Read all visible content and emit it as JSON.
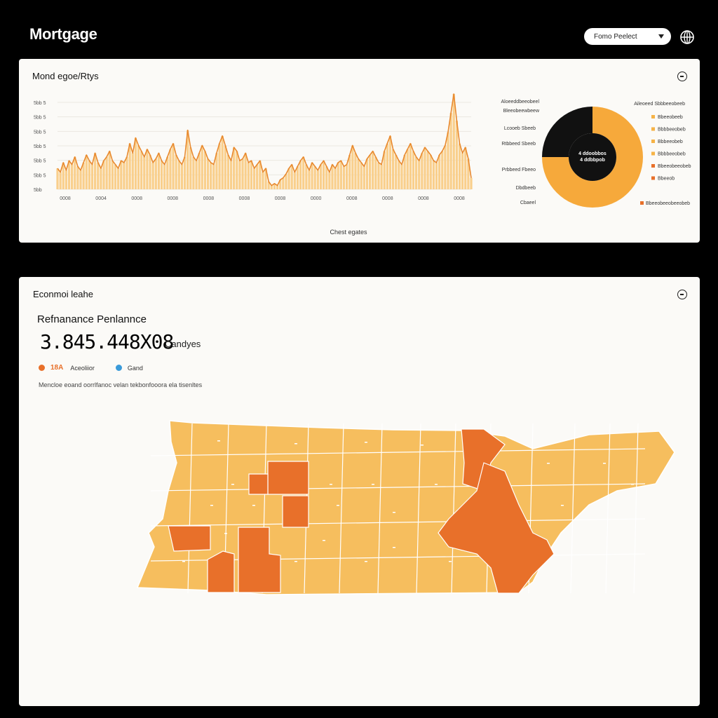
{
  "app": {
    "title": "Mortgage"
  },
  "header": {
    "range_value": "Fomo Peelect"
  },
  "trend_panel": {
    "title": "Mond egoe/Rtys",
    "caption": "Chest egates"
  },
  "chart_data": [
    {
      "type": "area",
      "title": "",
      "y_ticks": [
        "5bb 5",
        "5bb 5",
        "5bb 5",
        "5bb 5",
        "5bb 5",
        "5bb 5",
        "5bb"
      ],
      "x_ticks": [
        "0008",
        "0004",
        "0008",
        "0008",
        "0008",
        "0008",
        "0008",
        "0000",
        "0008",
        "0008",
        "0008",
        "0008"
      ],
      "ylim": [
        0,
        100
      ],
      "values": [
        22,
        18,
        28,
        20,
        30,
        26,
        34,
        24,
        20,
        28,
        36,
        30,
        26,
        38,
        28,
        22,
        30,
        34,
        40,
        30,
        26,
        22,
        30,
        28,
        34,
        48,
        38,
        54,
        46,
        40,
        34,
        42,
        36,
        28,
        32,
        38,
        30,
        26,
        34,
        42,
        48,
        36,
        30,
        26,
        34,
        62,
        44,
        34,
        30,
        38,
        46,
        40,
        32,
        28,
        26,
        38,
        48,
        56,
        46,
        36,
        30,
        44,
        40,
        30,
        32,
        38,
        28,
        30,
        22,
        26,
        30,
        18,
        22,
        8,
        4,
        6,
        4,
        10,
        12,
        16,
        22,
        26,
        18,
        24,
        30,
        34,
        26,
        20,
        28,
        24,
        20,
        26,
        30,
        24,
        18,
        26,
        22,
        28,
        30,
        24,
        26,
        36,
        46,
        38,
        32,
        28,
        24,
        32,
        36,
        40,
        34,
        28,
        26,
        40,
        48,
        56,
        42,
        36,
        30,
        26,
        36,
        42,
        48,
        40,
        34,
        30,
        38,
        44,
        40,
        36,
        30,
        28,
        36,
        40,
        46,
        60,
        80,
        100,
        72,
        48,
        38,
        44,
        32,
        12
      ]
    },
    {
      "type": "pie",
      "title": "",
      "center_label": [
        "4 ddoobbos",
        "4 ddbbpob"
      ],
      "slices": [
        {
          "label": "Aloeeddbeeobeel",
          "value": 75,
          "color": "#f6a93b"
        },
        {
          "label": "Bleeobeewbeew",
          "value": 25,
          "color": "#111111"
        }
      ],
      "left_labels": [
        "Aloeeddbeeobeel",
        "Bleeobeewbeew",
        "Lcooeb Sbeeb",
        "Rtbbeed Sbeeb",
        "Prbbeed Fbeeo",
        "Dbdbeeb",
        "Cbaeel"
      ],
      "legend_title": "Aileoeed Sbbbeeobeeb",
      "legend": [
        {
          "label": "Bbeeobeeb",
          "color": "#f6b346"
        },
        {
          "label": "Bbbbeeobeb",
          "color": "#f6b346"
        },
        {
          "label": "Bbbeeobeb",
          "color": "#f6b346"
        },
        {
          "label": "Bbbbeeobeb",
          "color": "#f6b346"
        },
        {
          "label": "Bbeeobeeobeb",
          "color": "#e8702a"
        },
        {
          "label": "Bbeeob",
          "color": "#e8702a"
        }
      ],
      "legend_footer": {
        "label": "Bbeeobeeobeeobeb",
        "color": "#e8702a"
      }
    }
  ],
  "map_panel": {
    "title": "Econmoi leahe",
    "subtitle": "Refnanance Penlannce",
    "value": "3.845.448X08",
    "unit": "Candyes",
    "legend": [
      {
        "label": "18A",
        "color": "#e8702a"
      },
      {
        "label": "Aceoliior",
        "color": "#e8702a"
      },
      {
        "label": "Gand",
        "color": "#3a9ad9"
      }
    ],
    "note": "Mencloe eoand oorrlfanoc velan tekbonfooora ela tisenltes",
    "colors": {
      "base": "#f6be5e",
      "highlight": "#e8702a",
      "border": "#ffffff"
    }
  }
}
